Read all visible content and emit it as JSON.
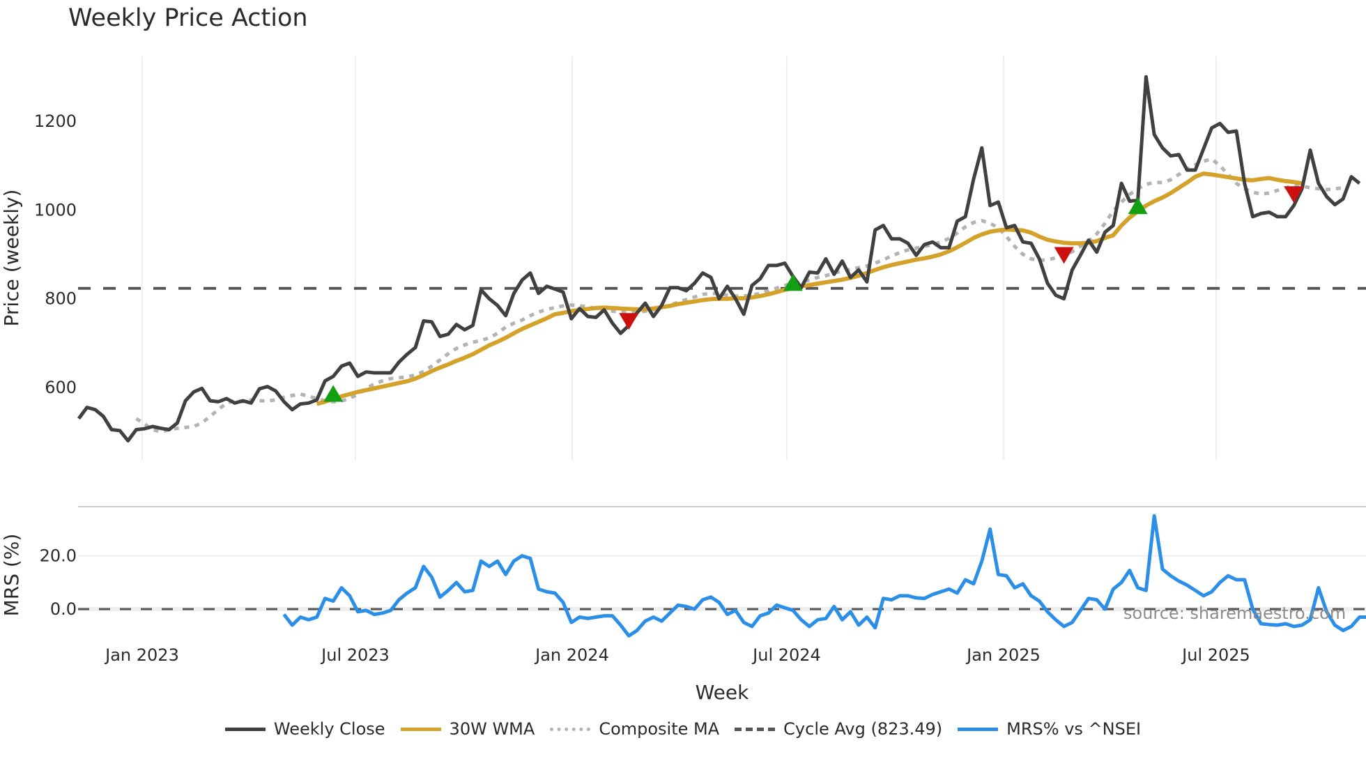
{
  "title": "Weekly Price Action",
  "source_note": "source: sharemaestro.com",
  "legend": [
    {
      "label": "Weekly Close",
      "color": "#404040",
      "style": "solid"
    },
    {
      "label": "30W WMA",
      "color": "#d4a22a",
      "style": "solid"
    },
    {
      "label": "Composite MA",
      "color": "#b3b3b3",
      "style": "dotted"
    },
    {
      "label": "Cycle Avg (823.49)",
      "color": "#555555",
      "style": "dashed"
    },
    {
      "label": "MRS% vs ^NSEI",
      "color": "#2b8fe8",
      "style": "solid"
    }
  ],
  "chart_data": [
    {
      "type": "line",
      "title": "Weekly Price Action",
      "xlabel": "Week",
      "ylabel": "Price (weekly)",
      "x_ticks": [
        "Jan 2023",
        "Jul 2023",
        "Jan 2024",
        "Jul 2024",
        "Jan 2025",
        "Jul 2025"
      ],
      "y_ticks": [
        600,
        800,
        1000,
        1200
      ],
      "ylim": [
        430,
        1340
      ],
      "x_start": "2022-11-07",
      "x_step": "1 week",
      "grid": true,
      "reference_line": {
        "label": "Cycle Avg",
        "value": 823.49,
        "style": "dashed"
      },
      "series": [
        {
          "name": "Weekly Close",
          "start_index": 0,
          "values": [
            530,
            555,
            550,
            535,
            505,
            503,
            480,
            505,
            507,
            512,
            508,
            505,
            520,
            570,
            590,
            598,
            570,
            568,
            575,
            565,
            570,
            565,
            597,
            602,
            592,
            568,
            550,
            563,
            565,
            572,
            615,
            625,
            648,
            655,
            625,
            635,
            633,
            633,
            633,
            657,
            675,
            690,
            750,
            748,
            715,
            720,
            742,
            730,
            740,
            820,
            800,
            785,
            762,
            812,
            842,
            858,
            812,
            828,
            822,
            815,
            755,
            778,
            760,
            758,
            775,
            745,
            722,
            740,
            768,
            790,
            760,
            785,
            825,
            825,
            818,
            835,
            858,
            848,
            800,
            828,
            800,
            765,
            830,
            845,
            875,
            875,
            880,
            850,
            825,
            860,
            858,
            890,
            855,
            885,
            848,
            865,
            838,
            955,
            965,
            935,
            935,
            925,
            898,
            922,
            928,
            915,
            915,
            975,
            985,
            1070,
            1140,
            1010,
            1018,
            960,
            965,
            928,
            925,
            890,
            835,
            808,
            800,
            865,
            898,
            932,
            905,
            950,
            965,
            1060,
            1020,
            1022,
            1300,
            1170,
            1140,
            1122,
            1125,
            1090,
            1090,
            1138,
            1185,
            1195,
            1175,
            1178,
            1060,
            985,
            992,
            995,
            985,
            985,
            1010,
            1048,
            1135,
            1060,
            1030,
            1012,
            1025,
            1075,
            1060
          ]
        },
        {
          "name": "30W WMA",
          "start_index": 29,
          "values": [
            563,
            568,
            574,
            580,
            585,
            590,
            594,
            598,
            602,
            606,
            610,
            614,
            620,
            628,
            637,
            645,
            652,
            660,
            667,
            675,
            685,
            695,
            703,
            712,
            722,
            732,
            740,
            748,
            756,
            765,
            768,
            772,
            775,
            777,
            779,
            780,
            779,
            778,
            777,
            776,
            776,
            778,
            781,
            784,
            788,
            791,
            794,
            797,
            799,
            800,
            800,
            801,
            801,
            803,
            806,
            810,
            815,
            820,
            824,
            828,
            831,
            834,
            837,
            840,
            843,
            847,
            852,
            858,
            865,
            871,
            876,
            880,
            884,
            888,
            891,
            895,
            900,
            907,
            916,
            926,
            937,
            945,
            951,
            954,
            956,
            955,
            954,
            949,
            940,
            933,
            929,
            926,
            925,
            925,
            926,
            930,
            937,
            943,
            965,
            983,
            997,
            1010,
            1020,
            1028,
            1038,
            1050,
            1062,
            1075,
            1082,
            1080,
            1077,
            1074,
            1071,
            1068,
            1067,
            1070,
            1072,
            1068,
            1065,
            1063,
            1060
          ]
        },
        {
          "name": "Composite MA",
          "start_index": 7,
          "values": [
            530,
            518,
            505,
            500,
            505,
            508,
            510,
            512,
            520,
            535,
            550,
            565,
            570,
            568,
            572,
            570,
            570,
            572,
            578,
            582,
            585,
            580,
            575,
            570,
            568,
            570,
            575,
            585,
            598,
            608,
            615,
            620,
            622,
            624,
            628,
            636,
            648,
            662,
            676,
            688,
            696,
            702,
            706,
            712,
            722,
            736,
            745,
            752,
            762,
            770,
            776,
            780,
            784,
            786,
            784,
            782,
            778,
            775,
            772,
            770,
            770,
            770,
            772,
            775,
            780,
            786,
            792,
            798,
            804,
            810,
            812,
            812,
            808,
            806,
            806,
            808,
            812,
            818,
            824,
            830,
            835,
            838,
            842,
            848,
            852,
            858,
            862,
            866,
            870,
            874,
            880,
            888,
            896,
            904,
            910,
            914,
            918,
            922,
            928,
            936,
            948,
            962,
            972,
            976,
            970,
            960,
            940,
            918,
            900,
            890,
            886,
            888,
            892,
            898,
            906,
            918,
            930,
            946,
            970,
            998,
            1018,
            1035,
            1048,
            1058,
            1062,
            1062,
            1068,
            1080,
            1092,
            1102,
            1110,
            1115,
            1100,
            1080,
            1060,
            1048,
            1040,
            1036,
            1038,
            1044,
            1050,
            1055,
            1054,
            1050,
            1048,
            1046,
            1048,
            1050
          ]
        },
        {
          "name": "MRS% vs ^NSEI",
          "panel": "lower",
          "start_index": 25,
          "values": [
            -2,
            -6,
            -3,
            -4,
            -3,
            4,
            3,
            8,
            5,
            -1,
            -0.5,
            -2,
            -1.5,
            -0.5,
            3.5,
            6,
            8,
            16,
            12,
            4.5,
            7,
            10,
            6.5,
            7,
            18,
            16,
            18,
            13,
            18,
            20,
            19,
            7.5,
            6.5,
            6,
            2.5,
            -5,
            -3,
            -3.5,
            -3,
            -2.5,
            -2.5,
            -6,
            -10,
            -8,
            -4.5,
            -3,
            -4.5,
            -1.5,
            1.5,
            1,
            0,
            3.5,
            4.5,
            2.5,
            -2,
            -0.5,
            -5,
            -6.5,
            -2.5,
            -1.5,
            1.5,
            0.5,
            -0.5,
            -4,
            -6.5,
            -4,
            -3.5,
            1,
            -4,
            -1,
            -6,
            -3,
            -7,
            4,
            3.5,
            5,
            5,
            4.2,
            4,
            5.5,
            6.5,
            7.5,
            6,
            11,
            9.5,
            18,
            30,
            13,
            12.5,
            8,
            9.5,
            5,
            3,
            -1,
            -4,
            -6.5,
            -5,
            -0.5,
            4,
            3.5,
            0,
            7.5,
            10,
            14.5,
            8,
            7,
            35,
            15,
            12.5,
            10.5,
            9,
            7,
            5,
            6.5,
            10,
            12.5,
            11,
            11,
            0,
            -5.5,
            -5.8,
            -6,
            -5.5,
            -6.5,
            -6,
            -4,
            8,
            -1,
            -6,
            -8,
            -6.5,
            -3,
            -3
          ]
        }
      ]
    },
    {
      "type": "line",
      "title": "",
      "xlabel": "Week",
      "ylabel": "MRS (%)",
      "y_ticks": [
        0.0,
        20.0
      ],
      "ylim": [
        -12,
        38
      ],
      "reference_line": {
        "value": 0,
        "style": "dashed"
      }
    }
  ],
  "signals": {
    "buy": [
      31,
      87,
      129
    ],
    "sell": [
      67,
      120,
      148
    ]
  },
  "axes": {
    "price_ylabel": "Price (weekly)",
    "mrs_ylabel": "MRS (%)",
    "xlabel": "Week",
    "price_ticks": [
      "1200",
      "1000",
      "800",
      "600"
    ],
    "mrs_ticks": [
      "20.0",
      "0.0"
    ],
    "x_ticks": [
      "Jan 2023",
      "Jul 2023",
      "Jan 2024",
      "Jul 2024",
      "Jan 2025",
      "Jul 2025"
    ]
  }
}
